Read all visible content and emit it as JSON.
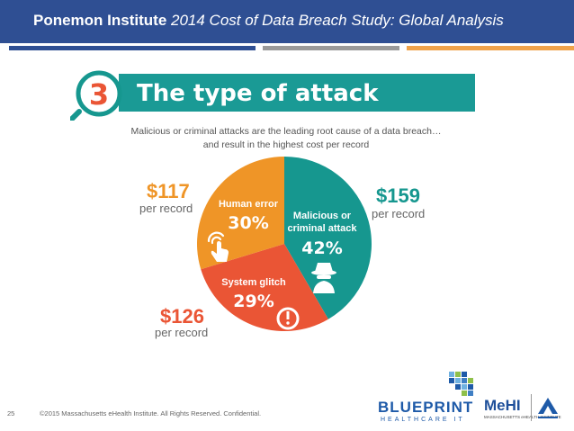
{
  "header": {
    "title_bold": "Ponemon Institute",
    "title_italic": "2014 Cost of Data Breach Study: Global Analysis",
    "bg_color": "#2f4f93"
  },
  "infographic": {
    "number": "3",
    "title": "The type of attack",
    "subtitle_line1": "Malicious or criminal attacks are the leading root cause of a data breach…",
    "subtitle_line2": "and result in the highest cost per record"
  },
  "chart_data": {
    "type": "pie",
    "slices": [
      {
        "label_line1": "Malicious or",
        "label_line2": "criminal attack",
        "percent_label": "42%",
        "value": 42,
        "cost": "$159",
        "cost_unit": "per record",
        "color": "#16978f",
        "icon": "spy-icon"
      },
      {
        "label_line1": "System glitch",
        "label_line2": "",
        "percent_label": "29%",
        "value": 29,
        "cost": "$126",
        "cost_unit": "per record",
        "color": "#ea5535",
        "icon": "exclamation-icon"
      },
      {
        "label_line1": "Human error",
        "label_line2": "",
        "percent_label": "30%",
        "value": 30,
        "cost": "$117",
        "cost_unit": "per record",
        "color": "#ef9527",
        "icon": "hand-touch-icon"
      }
    ]
  },
  "footer": {
    "page_number": "25",
    "copyright": "©2015 Massachusetts eHealth Institute. All Rights Reserved. Confidential."
  },
  "logos": {
    "blueprint": "BLUEPRINT",
    "blueprint_sub": "HEALTHCARE IT",
    "mehi": "MeHI",
    "mehi_sub": "MASSACHUSETTS eHEALTH INSTITUTE"
  }
}
